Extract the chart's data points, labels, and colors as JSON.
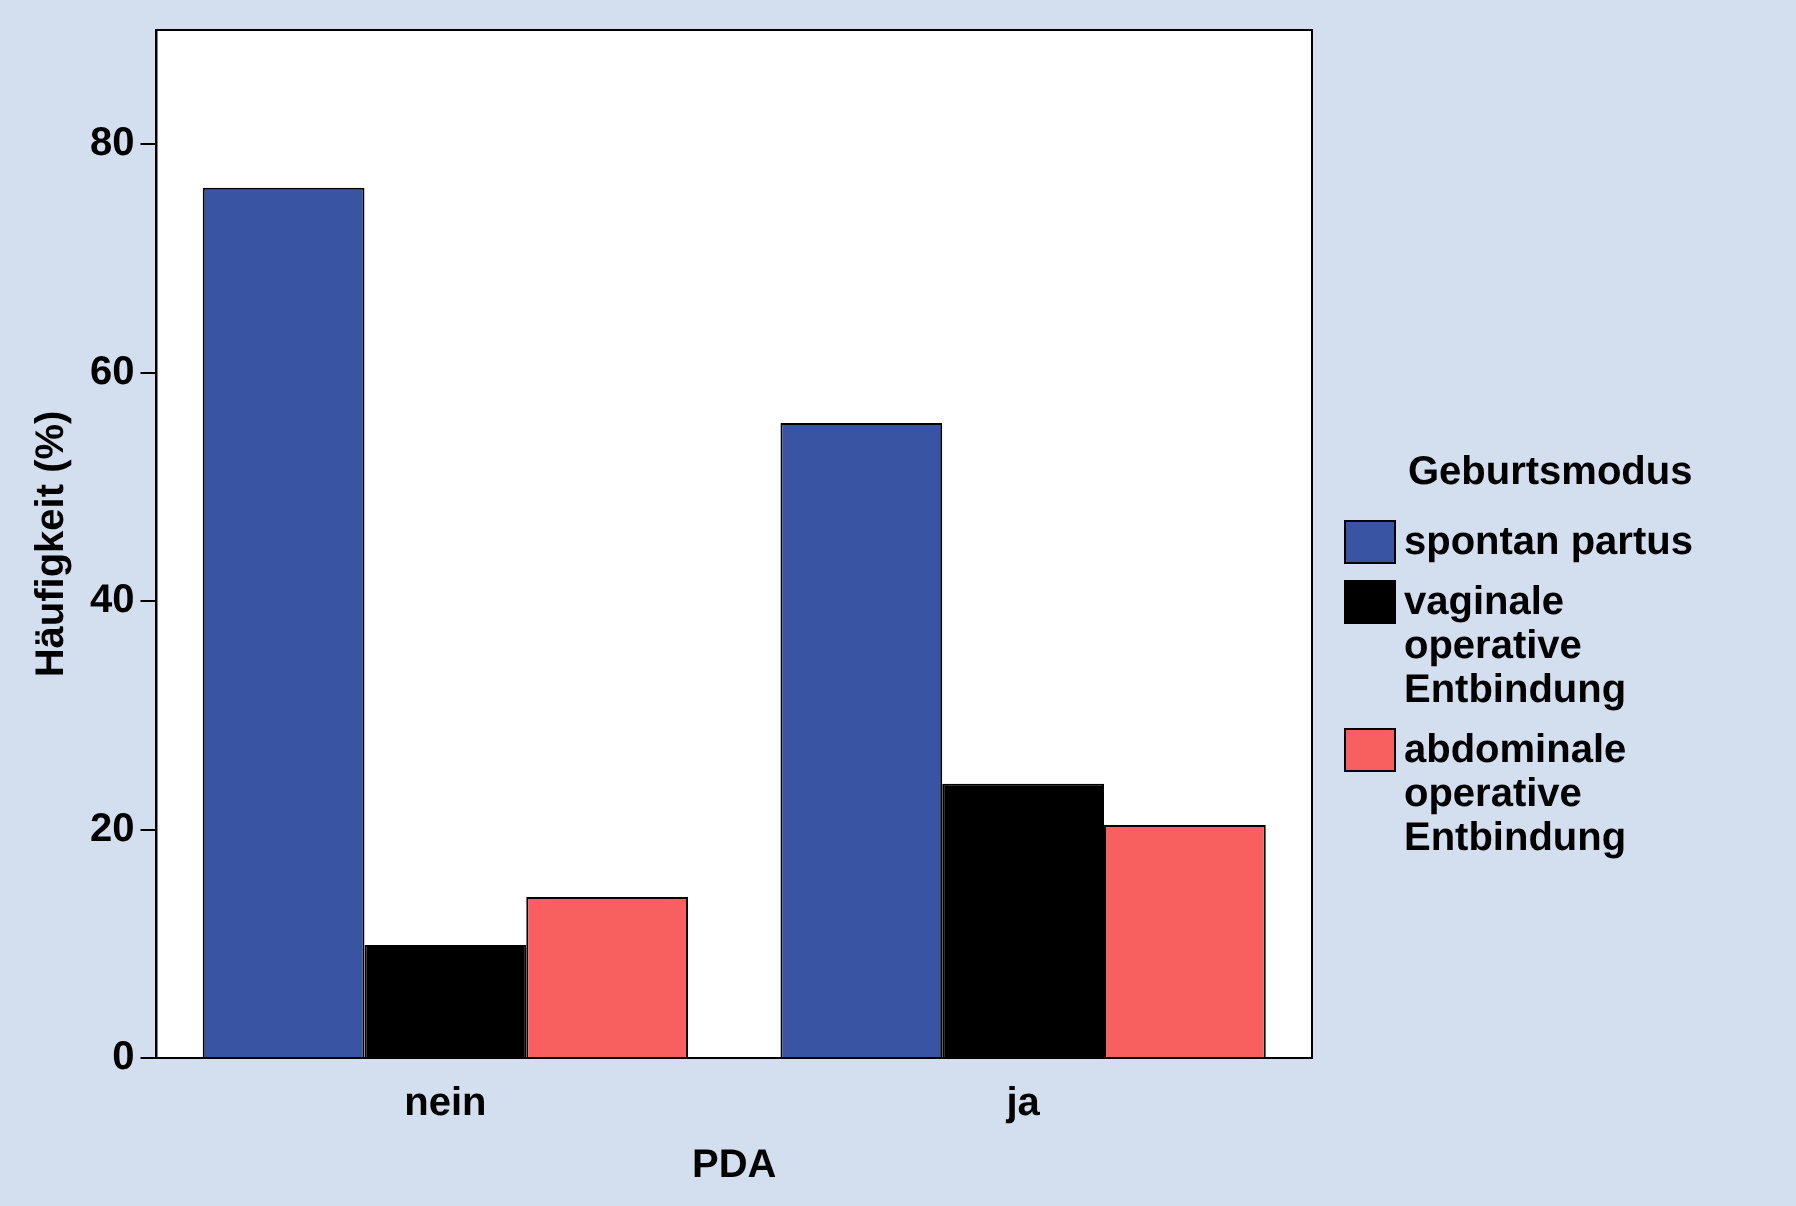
{
  "chart_data": {
    "type": "bar",
    "xlabel": "PDA",
    "ylabel": "Häufigkeit (%)",
    "legend_title": "Geburtsmodus",
    "categories": [
      "nein",
      "ja"
    ],
    "series": [
      {
        "name": "spontan partus",
        "color": "#3a54a4",
        "values": [
          76.2,
          55.6
        ]
      },
      {
        "name": "vaginale operative Entbindung",
        "color": "#000000",
        "values": [
          9.9,
          24.0
        ]
      },
      {
        "name": "abdominale operative Entbindung",
        "color": "#f8605f",
        "values": [
          14.1,
          20.4
        ]
      }
    ],
    "ylim": [
      0,
      90
    ],
    "yticks": [
      0,
      20,
      40,
      60,
      80
    ],
    "grid": false,
    "legend": "right"
  }
}
